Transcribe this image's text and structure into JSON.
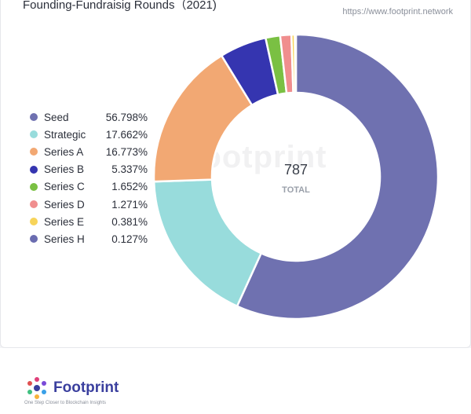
{
  "header": {
    "title": "Founding-Fundraisig Rounds（2021)",
    "source": "https://www.footprint.network"
  },
  "chart_data": {
    "type": "pie",
    "subtype": "donut",
    "title": "Founding-Fundraisig Rounds（2021)",
    "center_value": "787",
    "center_label": "TOTAL",
    "legend_position": "left",
    "categories": [
      "Seed",
      "Strategic",
      "Series A",
      "Series B",
      "Series C",
      "Series D",
      "Series E",
      "Series H"
    ],
    "values": [
      56.798,
      17.662,
      16.773,
      5.337,
      1.652,
      1.271,
      0.381,
      0.127
    ],
    "value_labels": [
      "56.798%",
      "17.662%",
      "16.773%",
      "5.337%",
      "1.652%",
      "1.271%",
      "0.381%",
      "0.127%"
    ],
    "colors": [
      "#6f71b0",
      "#98dcdc",
      "#f2a873",
      "#3535b0",
      "#7ac043",
      "#f08e8e",
      "#f7d45a",
      "#6a6cb0"
    ]
  },
  "watermark": "Footprint",
  "footer": {
    "brand": "Footprint",
    "tagline": "One Step Closer to Blockchain Insights"
  }
}
